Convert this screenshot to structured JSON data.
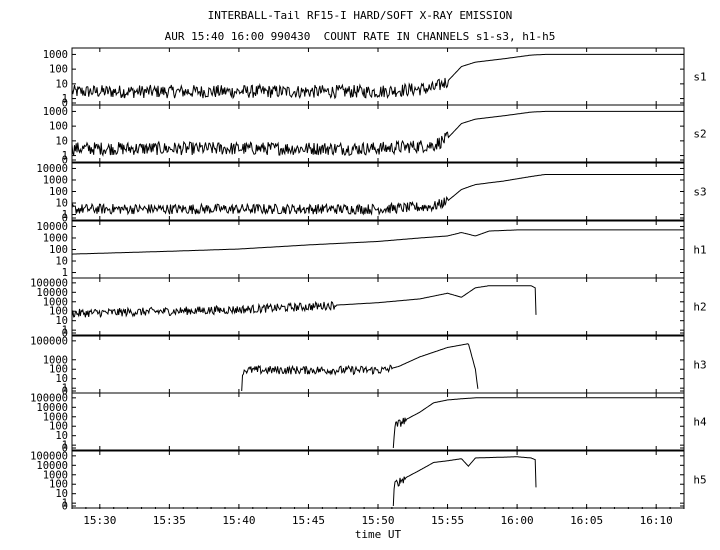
{
  "chart_data": {
    "type": "line",
    "title": "INTERBALL-Tail RF15-I HARD/SOFT X-RAY EMISSION",
    "subtitle": "AUR 15:40 16:00 990430  COUNT RATE IN CHANNELS s1-s3, h1-h5",
    "xlabel": "time UT",
    "x_ticks": [
      "15:30",
      "15:35",
      "15:40",
      "15:45",
      "15:50",
      "15:55",
      "16:00",
      "16:05",
      "16:10"
    ],
    "xlim": [
      "15:28",
      "16:12"
    ],
    "y_scale": "log",
    "grid": false,
    "panels": [
      {
        "name": "s1",
        "y_ticks": [
          "1000",
          "100",
          "10",
          "1",
          "0"
        ],
        "ylim": [
          0.5,
          2000
        ],
        "series": {
          "x": [
            "15:28",
            "15:40",
            "15:50",
            "15:54",
            "15:55",
            "15:56",
            "15:57",
            "15:59",
            "16:01",
            "16:02",
            "16:12"
          ],
          "y": [
            3,
            3,
            3,
            5,
            15,
            150,
            300,
            500,
            900,
            1000,
            1000
          ],
          "noise_until": "15:55"
        }
      },
      {
        "name": "s2",
        "y_ticks": [
          "1000",
          "100",
          "10",
          "1",
          "0"
        ],
        "ylim": [
          0.5,
          2000
        ],
        "series": {
          "x": [
            "15:28",
            "15:40",
            "15:50",
            "15:54",
            "15:55",
            "15:56",
            "15:57",
            "15:59",
            "16:01",
            "16:02",
            "16:12"
          ],
          "y": [
            3,
            3,
            3,
            5,
            15,
            150,
            300,
            500,
            900,
            1000,
            1000
          ],
          "noise_until": "15:55"
        }
      },
      {
        "name": "s3",
        "y_ticks": [
          "10000",
          "1000",
          "100",
          "10",
          "1",
          "0"
        ],
        "ylim": [
          0.5,
          20000
        ],
        "series": {
          "x": [
            "15:28",
            "15:40",
            "15:50",
            "15:54",
            "15:55",
            "15:56",
            "15:57",
            "15:59",
            "16:01",
            "16:02",
            "16:12"
          ],
          "y": [
            3,
            3,
            3,
            5,
            15,
            150,
            400,
            800,
            2000,
            3000,
            3000
          ],
          "noise_until": "15:55"
        }
      },
      {
        "name": "h1",
        "y_ticks": [
          "10000",
          "1000",
          "100",
          "10",
          "1"
        ],
        "ylim": [
          0.5,
          20000
        ],
        "series": {
          "x": [
            "15:28",
            "15:35",
            "15:40",
            "15:45",
            "15:50",
            "15:53",
            "15:55",
            "15:56",
            "15:57",
            "15:58",
            "16:00",
            "16:12"
          ],
          "y": [
            40,
            70,
            110,
            250,
            500,
            1000,
            1500,
            3000,
            1500,
            4000,
            5000,
            5000
          ],
          "noise_until": "15:28"
        }
      },
      {
        "name": "h2",
        "y_ticks": [
          "100000",
          "10000",
          "1000",
          "100",
          "10",
          "1",
          "0"
        ],
        "ylim": [
          0.5,
          200000
        ],
        "series": {
          "x": [
            "15:28",
            "15:35",
            "15:40",
            "15:45",
            "15:50",
            "15:53",
            "15:55",
            "15:56",
            "15:57",
            "15:58",
            "16:01",
            "16:01.3",
            "16:01.4"
          ],
          "y": [
            60,
            100,
            150,
            300,
            800,
            2000,
            8000,
            3000,
            30000,
            50000,
            50000,
            30000,
            0.5
          ],
          "noise_until": "15:47"
        }
      },
      {
        "name": "h3",
        "y_ticks": [
          "100000",
          "1000",
          "100",
          "10",
          "1",
          "0"
        ],
        "ylim": [
          0.5,
          200000
        ],
        "series": {
          "x": [
            "15:40.2",
            "15:40.3",
            "15:45",
            "15:50.5",
            "15:51.5",
            "15:53",
            "15:55",
            "15:56.5",
            "15:57",
            "15:57.2"
          ],
          "y": [
            0.5,
            80,
            80,
            80,
            200,
            2000,
            20000,
            50000,
            100,
            0.5
          ],
          "noise_until": "15:51"
        }
      },
      {
        "name": "h4",
        "y_ticks": [
          "100000",
          "10000",
          "1000",
          "100",
          "10",
          "1",
          "0"
        ],
        "ylim": [
          0.5,
          200000
        ],
        "series": {
          "x": [
            "15:51.1",
            "15:51.2",
            "15:52",
            "15:53",
            "15:54",
            "15:55",
            "15:56",
            "15:57",
            "16:12"
          ],
          "y": [
            0.5,
            100,
            500,
            3000,
            30000,
            60000,
            80000,
            100000,
            100000
          ],
          "noise_until": "15:52"
        }
      },
      {
        "name": "h5",
        "y_ticks": [
          "100000",
          "10000",
          "1000",
          "100",
          "10",
          "1",
          "0"
        ],
        "ylim": [
          0.5,
          200000
        ],
        "series": {
          "x": [
            "15:51.1",
            "15:51.2",
            "15:52",
            "15:53",
            "15:54",
            "15:55",
            "15:56",
            "15:56.5",
            "15:57",
            "16:00",
            "16:01",
            "16:01.3",
            "16:01.4"
          ],
          "y": [
            0.5,
            100,
            500,
            3000,
            20000,
            30000,
            50000,
            8000,
            60000,
            80000,
            60000,
            40000,
            0.5
          ],
          "noise_until": "15:52"
        }
      }
    ]
  }
}
